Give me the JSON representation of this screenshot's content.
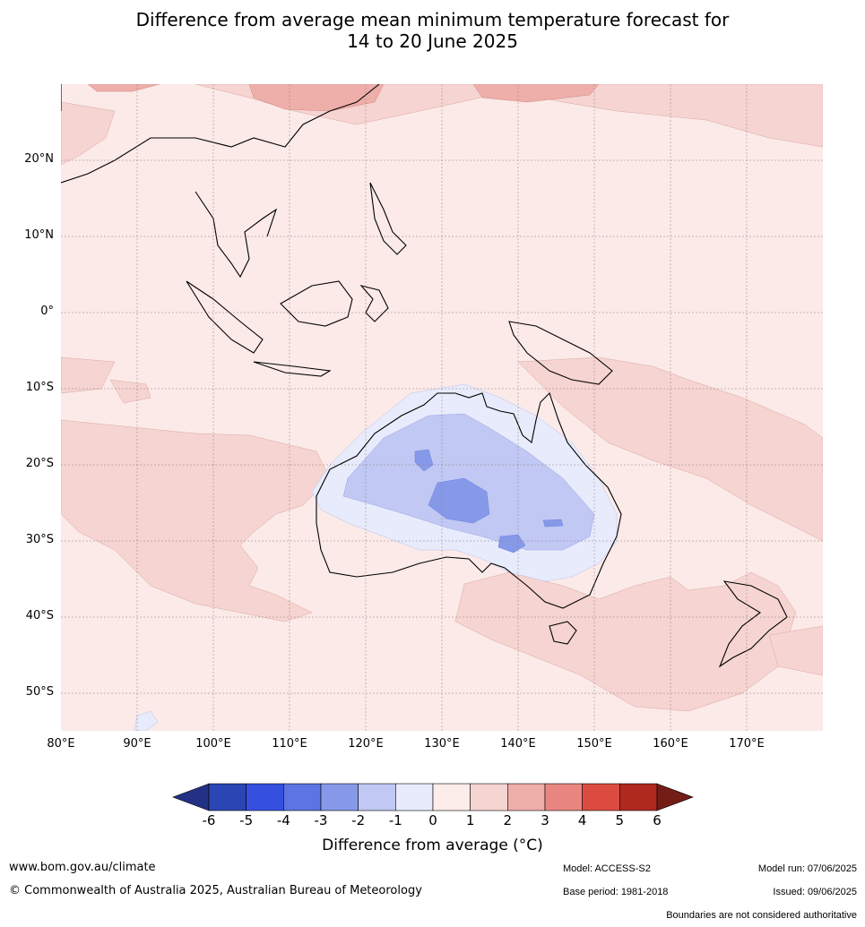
{
  "title": {
    "line1": "Difference from average mean minimum temperature forecast for",
    "line2": "14 to 20 June 2025"
  },
  "map": {
    "extent": {
      "lon_min": 80,
      "lon_max": 180,
      "lat_min": -55,
      "lat_max": 30
    },
    "lat_labels": [
      "20°N",
      "10°N",
      "0°",
      "10°S",
      "20°S",
      "30°S",
      "40°S",
      "50°S"
    ],
    "lon_labels": [
      "80°E",
      "90°E",
      "100°E",
      "110°E",
      "120°E",
      "130°E",
      "140°E",
      "150°E",
      "160°E",
      "170°E"
    ],
    "background_anomaly_color": "#fbeae8"
  },
  "colorbar": {
    "title": "Difference from average ($^\\circ$C)",
    "title_display": "Difference from average (°C)",
    "tick_labels": [
      "-6",
      "-5",
      "-4",
      "-3",
      "-2",
      "-1",
      "0",
      "1",
      "2",
      "3",
      "4",
      "5",
      "6"
    ],
    "colors": [
      "#223185",
      "#2a45b4",
      "#3550e0",
      "#5c74e4",
      "#8699e9",
      "#c0c8f3",
      "#e8ebfb",
      "#fcecea",
      "#f6d4d1",
      "#eeaeaa",
      "#e98680",
      "#dc4b40",
      "#b0291f",
      "#741d16"
    ]
  },
  "footer": {
    "url": "www.bom.gov.au/climate",
    "copyright": "© Commonwealth of Australia 2025, Australian Bureau of Meteorology",
    "model": "Model: ACCESS-S2",
    "base_period": "Base period: 1981-2018",
    "model_run": "Model run: 07/06/2025",
    "issued": "Issued: 09/06/2025",
    "disclaimer": "Boundaries are not considered authoritative"
  }
}
